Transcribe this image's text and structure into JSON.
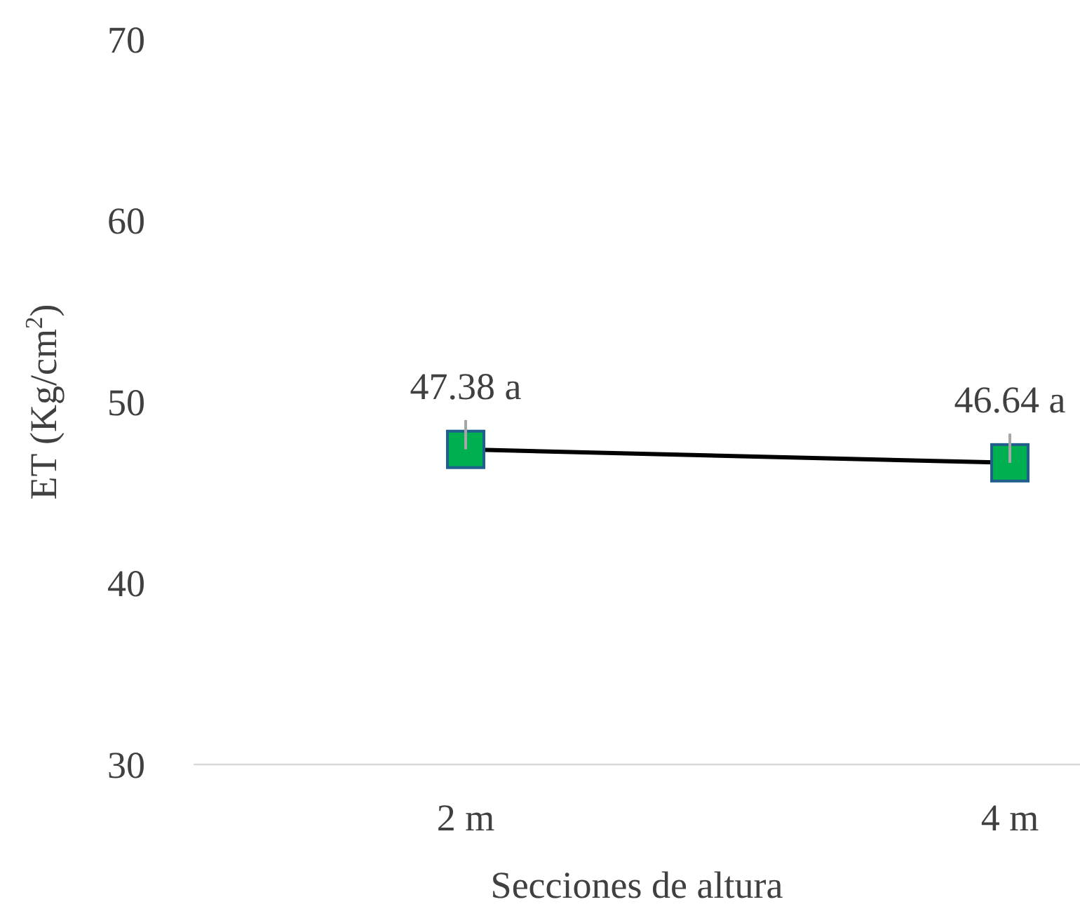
{
  "chart_data": {
    "type": "line",
    "xlabel": "Secciones de altura",
    "ylabel": "ET (Kg/cm$^{2}$)",
    "categories": [
      "2 m",
      "4 m"
    ],
    "series": [
      {
        "color": "#000000",
        "values": [
          47.38,
          46.64
        ],
        "errors": [
          [
            47.38,
            49.0
          ],
          [
            46.64,
            48.25
          ]
        ],
        "value_labels": [
          "47.38 a",
          "46.64 a"
        ]
      }
    ],
    "ylim": [
      30,
      70
    ],
    "yticks": [
      30,
      40,
      50,
      60,
      70
    ],
    "marker": "square",
    "line_style": "solid",
    "grid": false
  }
}
